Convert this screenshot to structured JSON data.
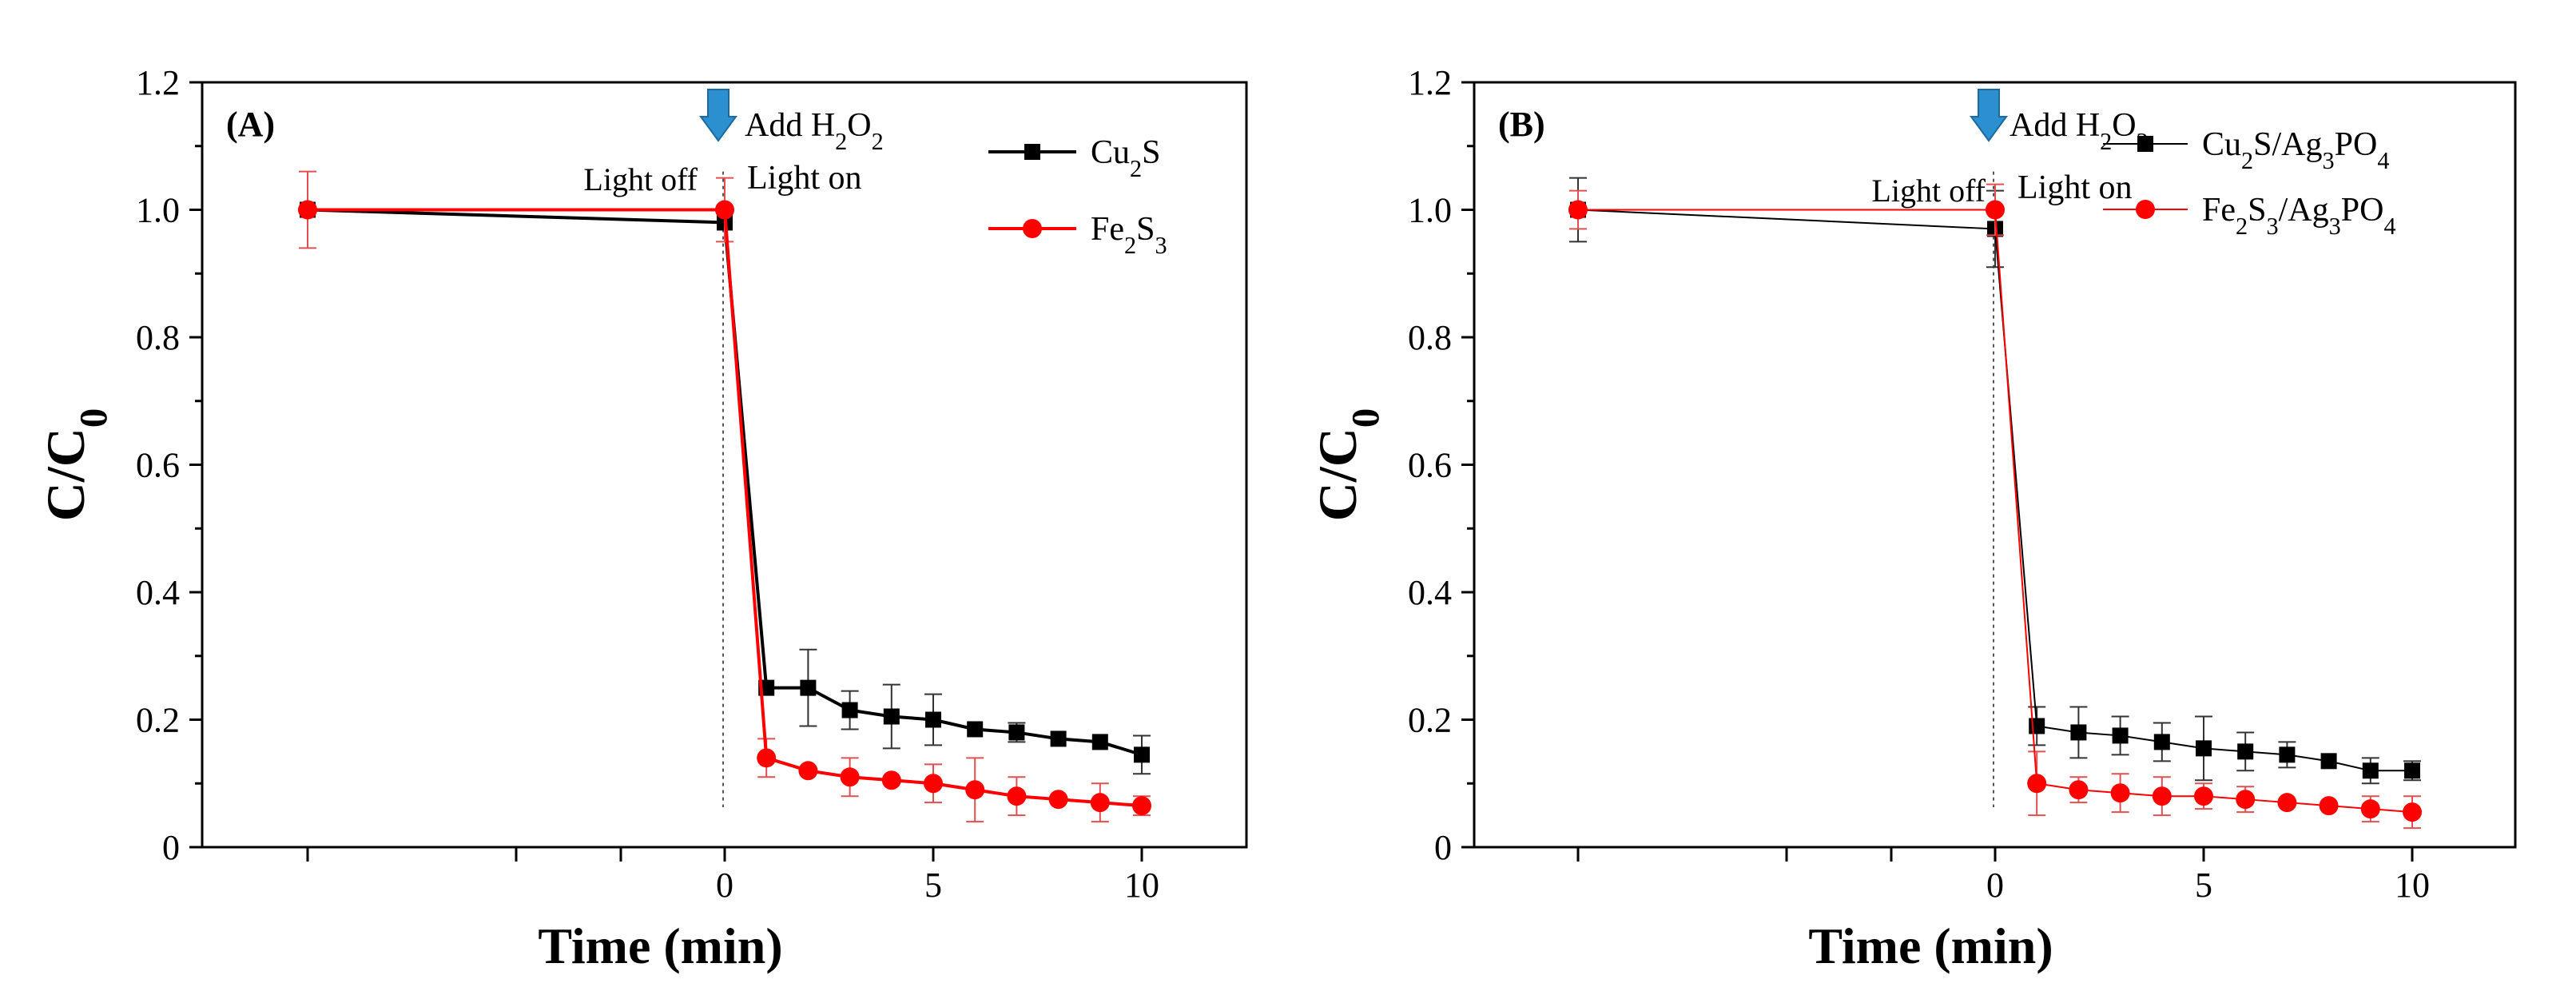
{
  "chart_data": [
    {
      "panel_label": "(A)",
      "type": "line",
      "xlabel": "Time (min)",
      "ylabel": {
        "main": "C/C",
        "sub": "0"
      },
      "ylim": [
        0,
        1.2
      ],
      "x_ticks": [
        "0",
        "5",
        "10"
      ],
      "y_ticks": [
        "0",
        "0.2",
        "0.4",
        "0.6",
        "0.8",
        "1.0",
        "1.2"
      ],
      "annotations": {
        "add_prefix": "Add H",
        "add_sub1": "2",
        "add_mid": "O",
        "add_sub2": "2",
        "light_off": "Light off",
        "light_on": "Light on"
      },
      "series": [
        {
          "name": "Cu2S",
          "legend": [
            {
              "t": "Cu",
              "sub": false
            },
            {
              "t": "2",
              "sub": true
            },
            {
              "t": "S",
              "sub": false
            }
          ],
          "color": "#000000",
          "points": [
            {
              "t": -10,
              "y": 1.0,
              "err": 0.0
            },
            {
              "t": 0,
              "y": 0.98,
              "err": 0.0
            },
            {
              "t": 1,
              "y": 0.25,
              "err": 0.0
            },
            {
              "t": 2,
              "y": 0.25,
              "err": 0.06
            },
            {
              "t": 3,
              "y": 0.215,
              "err": 0.03
            },
            {
              "t": 4,
              "y": 0.205,
              "err": 0.05
            },
            {
              "t": 5,
              "y": 0.2,
              "err": 0.04
            },
            {
              "t": 6,
              "y": 0.185,
              "err": 0.0
            },
            {
              "t": 7,
              "y": 0.18,
              "err": 0.015
            },
            {
              "t": 8,
              "y": 0.17,
              "err": 0.0
            },
            {
              "t": 9,
              "y": 0.165,
              "err": 0.0
            },
            {
              "t": 10,
              "y": 0.145,
              "err": 0.03
            }
          ]
        },
        {
          "name": "Fe2S3",
          "legend": [
            {
              "t": "Fe",
              "sub": false
            },
            {
              "t": "2",
              "sub": true
            },
            {
              "t": "S",
              "sub": false
            },
            {
              "t": "3",
              "sub": true
            }
          ],
          "color": "#ff0000",
          "points": [
            {
              "t": -10,
              "y": 1.0,
              "err": 0.06
            },
            {
              "t": 0,
              "y": 1.0,
              "err": 0.05
            },
            {
              "t": 1,
              "y": 0.14,
              "err": 0.03
            },
            {
              "t": 2,
              "y": 0.12,
              "err": 0.0
            },
            {
              "t": 3,
              "y": 0.11,
              "err": 0.03
            },
            {
              "t": 4,
              "y": 0.105,
              "err": 0.0
            },
            {
              "t": 5,
              "y": 0.1,
              "err": 0.03
            },
            {
              "t": 6,
              "y": 0.09,
              "err": 0.05
            },
            {
              "t": 7,
              "y": 0.08,
              "err": 0.03
            },
            {
              "t": 8,
              "y": 0.075,
              "err": 0.0
            },
            {
              "t": 9,
              "y": 0.07,
              "err": 0.03
            },
            {
              "t": 10,
              "y": 0.065,
              "err": 0.015
            }
          ]
        }
      ]
    },
    {
      "panel_label": "(B)",
      "type": "line",
      "xlabel": "Time (min)",
      "ylabel": {
        "main": "C/C",
        "sub": "0"
      },
      "ylim": [
        0,
        1.2
      ],
      "x_ticks": [
        "0",
        "5",
        "10"
      ],
      "y_ticks": [
        "0",
        "0.2",
        "0.4",
        "0.6",
        "0.8",
        "1.0",
        "1.2"
      ],
      "annotations": {
        "add_prefix": "Add H",
        "add_sub1": "2",
        "add_mid": "O",
        "add_sub2": "2",
        "light_off": "Light off",
        "light_on": "Light on"
      },
      "series": [
        {
          "name": "Cu2S/Ag3PO4",
          "legend": [
            {
              "t": "Cu",
              "sub": false
            },
            {
              "t": "2",
              "sub": true
            },
            {
              "t": "S/Ag",
              "sub": false
            },
            {
              "t": "3",
              "sub": true
            },
            {
              "t": "PO",
              "sub": false
            },
            {
              "t": "4",
              "sub": true
            }
          ],
          "color": "#000000",
          "points": [
            {
              "t": -10,
              "y": 1.0,
              "err": 0.05
            },
            {
              "t": 0,
              "y": 0.97,
              "err": 0.06
            },
            {
              "t": 1,
              "y": 0.19,
              "err": 0.03
            },
            {
              "t": 2,
              "y": 0.18,
              "err": 0.04
            },
            {
              "t": 3,
              "y": 0.175,
              "err": 0.03
            },
            {
              "t": 4,
              "y": 0.165,
              "err": 0.03
            },
            {
              "t": 5,
              "y": 0.155,
              "err": 0.05
            },
            {
              "t": 6,
              "y": 0.15,
              "err": 0.03
            },
            {
              "t": 7,
              "y": 0.145,
              "err": 0.02
            },
            {
              "t": 8,
              "y": 0.135,
              "err": 0.0
            },
            {
              "t": 9,
              "y": 0.12,
              "err": 0.02
            },
            {
              "t": 10,
              "y": 0.12,
              "err": 0.015
            }
          ]
        },
        {
          "name": "Fe2S3/Ag3PO4",
          "legend": [
            {
              "t": "Fe",
              "sub": false
            },
            {
              "t": "2",
              "sub": true
            },
            {
              "t": "S",
              "sub": false
            },
            {
              "t": "3",
              "sub": true
            },
            {
              "t": "/Ag",
              "sub": false
            },
            {
              "t": "3",
              "sub": true
            },
            {
              "t": "PO",
              "sub": false
            },
            {
              "t": "4",
              "sub": true
            }
          ],
          "color": "#ff0000",
          "points": [
            {
              "t": -10,
              "y": 1.0,
              "err": 0.03
            },
            {
              "t": 0,
              "y": 1.0,
              "err": 0.04
            },
            {
              "t": 1,
              "y": 0.1,
              "err": 0.05
            },
            {
              "t": 2,
              "y": 0.09,
              "err": 0.02
            },
            {
              "t": 3,
              "y": 0.085,
              "err": 0.03
            },
            {
              "t": 4,
              "y": 0.08,
              "err": 0.03
            },
            {
              "t": 5,
              "y": 0.08,
              "err": 0.02
            },
            {
              "t": 6,
              "y": 0.075,
              "err": 0.02
            },
            {
              "t": 7,
              "y": 0.07,
              "err": 0.0
            },
            {
              "t": 8,
              "y": 0.065,
              "err": 0.0
            },
            {
              "t": 9,
              "y": 0.06,
              "err": 0.02
            },
            {
              "t": 10,
              "y": 0.055,
              "err": 0.025
            }
          ]
        }
      ]
    }
  ],
  "colors": {
    "arrow": "#2b8fd0",
    "arrow_edge": "#1d6aa0",
    "axis": "#000000"
  }
}
